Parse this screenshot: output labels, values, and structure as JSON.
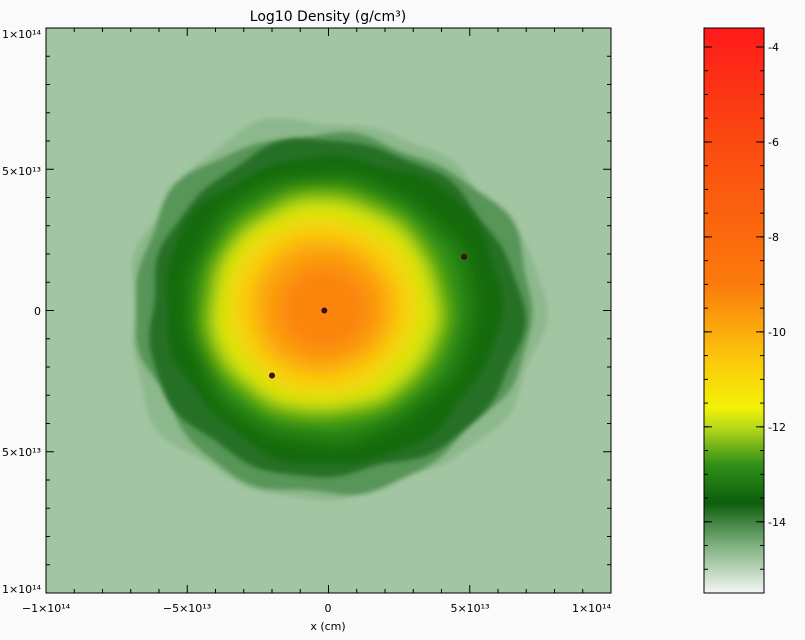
{
  "chart_data": {
    "type": "heatmap",
    "title": "Log10 Density (g/cm³)",
    "xlabel": "x (cm)",
    "ylabel": "",
    "xlim": [
      -100000000000000.0,
      100000000000000.0
    ],
    "ylim": [
      -100000000000000.0,
      100000000000000.0
    ],
    "x_tick_labels": [
      "−1×10¹⁴",
      "−5×10¹³",
      "0",
      "5×10¹³",
      "1×10¹⁴"
    ],
    "y_tick_labels": [
      "1×10¹⁴",
      "5×10¹³",
      "0",
      "5×10¹³",
      "1×10¹⁴"
    ],
    "colorbar": {
      "range": [
        -15.5,
        -3.6
      ],
      "tick_values": [
        -4,
        -6,
        -8,
        -10,
        -12,
        -14
      ],
      "tick_labels": [
        "-4",
        "-6",
        "-8",
        "-10",
        "-12",
        "-14"
      ],
      "stops": [
        {
          "value": -15.5,
          "color": "#f4f6f4"
        },
        {
          "value": -14.5,
          "color": "#7fb07f"
        },
        {
          "value": -13.6,
          "color": "#0d5e0d"
        },
        {
          "value": -12.8,
          "color": "#2f8f18"
        },
        {
          "value": -12.0,
          "color": "#bada1a"
        },
        {
          "value": -11.6,
          "color": "#f2f205"
        },
        {
          "value": -10.5,
          "color": "#fbc40c"
        },
        {
          "value": -9.0,
          "color": "#fb7a0c"
        },
        {
          "value": -6.0,
          "color": "#fb4a10"
        },
        {
          "value": -3.6,
          "color": "#ff1a1a"
        }
      ]
    },
    "background_value": -14.8,
    "point_sources": [
      {
        "x": -1500000000000.0,
        "y": 0
      },
      {
        "x": -20000000000000.0,
        "y": -23000000000000.0
      },
      {
        "x": 48000000000000.0,
        "y": 19000000000000.0
      }
    ]
  }
}
